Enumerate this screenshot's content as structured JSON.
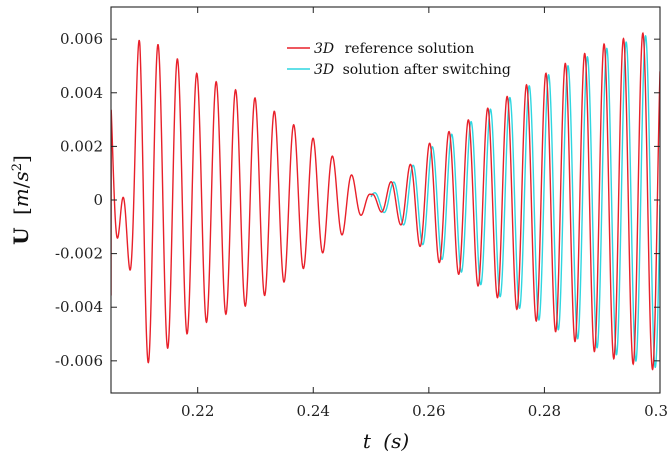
{
  "chart_data": {
    "type": "line",
    "title": "",
    "xlabel": "t (s)",
    "ylabel": "U [m/s²]",
    "xlim": [
      0.205,
      0.3
    ],
    "ylim": [
      -0.0072,
      0.0072
    ],
    "xticks": [
      {
        "value": 0.22,
        "label": "0.22"
      },
      {
        "value": 0.24,
        "label": "0.24"
      },
      {
        "value": 0.26,
        "label": "0.26"
      },
      {
        "value": 0.28,
        "label": "0.28"
      },
      {
        "value": 0.3,
        "label": "0.3"
      }
    ],
    "yticks": [
      {
        "value": 0.006,
        "label": "0.006"
      },
      {
        "value": 0.004,
        "label": "0.004"
      },
      {
        "value": 0.002,
        "label": "0.002"
      },
      {
        "value": 0,
        "label": "0"
      },
      {
        "value": -0.002,
        "label": "-0.002"
      },
      {
        "value": -0.004,
        "label": "-0.004"
      },
      {
        "value": -0.006,
        "label": "-0.006"
      }
    ],
    "grid": false,
    "legend_position": "top-right",
    "series": [
      {
        "name": "3D reference solution",
        "color": "#e8202a",
        "description": "oscillation ~298 Hz, envelope |U| decaying from 0.0064 at t=0.205 to ~0 near t=0.251, then growing to ~0.0064 at t=0.3",
        "x": [
          0.205,
          0.21,
          0.22,
          0.23,
          0.24,
          0.245,
          0.25,
          0.255,
          0.26,
          0.27,
          0.28,
          0.29,
          0.3
        ],
        "y": [
          -0.004,
          0.0063,
          0.0047,
          0.0038,
          0.0023,
          0.0013,
          0.0002,
          0.0009,
          0.0021,
          0.0034,
          0.0047,
          0.0058,
          0.0064
        ]
      },
      {
        "name": "3D solution after switching",
        "color": "#2fd6e0",
        "description": "starts at t=0.25, same frequency, phase-shifted from reference, amplitude grows to ~0.0062 at t=0.3",
        "x": [
          0.25,
          0.255,
          0.26,
          0.27,
          0.28,
          0.29,
          0.3
        ],
        "y": [
          0.0002,
          0.0008,
          0.0019,
          0.0033,
          0.0046,
          0.0056,
          0.0063
        ]
      }
    ]
  },
  "legend": {
    "items": [
      {
        "prefix": "3D",
        "label": "reference solution",
        "color": "#e8202a"
      },
      {
        "prefix": "3D",
        "label": "solution after switching",
        "color": "#2fd6e0"
      }
    ]
  },
  "axes": {
    "x_label_var": "t",
    "x_label_unit": "(s)",
    "y_label_var": "U",
    "y_label_unit_m": "m",
    "y_label_unit_s": "s",
    "y_label_unit_exp": "2"
  }
}
